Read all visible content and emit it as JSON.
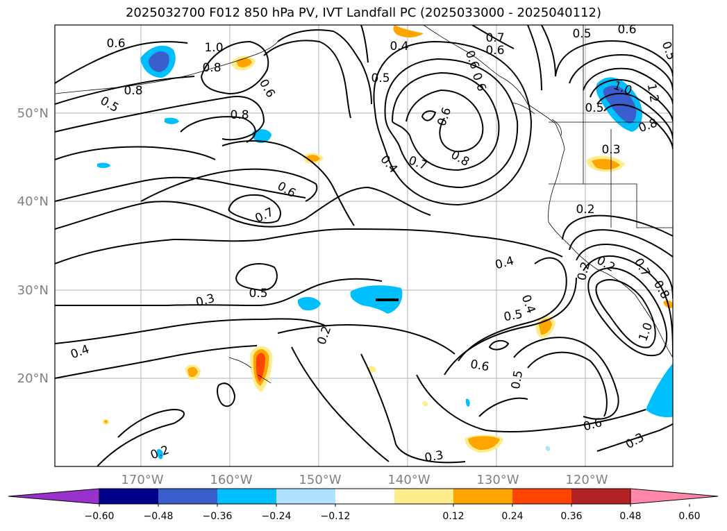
{
  "title": "2025032700 F012 850 hPa PV, IVT Landfall PC (2025033000 - 2025040112)",
  "map": {
    "lon_labels": [
      "170°W",
      "160°W",
      "150°W",
      "140°W",
      "130°W",
      "120°W"
    ],
    "lat_labels": [
      "50°N",
      "40°N",
      "30°N",
      "20°N"
    ],
    "contour_labels": [
      "0.6",
      "1.0",
      "0.8",
      "0.4",
      "0.7",
      "0.6",
      "0.5",
      "0.6",
      "0.6",
      "0.8",
      "0.5",
      "0.6",
      "0.5",
      "0.8",
      "0.6",
      "0.5",
      "0.6",
      "0.4",
      "0.7",
      "0.8",
      "1.0",
      "0.5",
      "1.2",
      "0.8",
      "0.3",
      "0.6",
      "0.7",
      "0.2",
      "0.4",
      "0.5",
      "0.3",
      "0.5",
      "0.4",
      "0.2",
      "0.6",
      "0.4",
      "0.5",
      "0.6",
      "0.3",
      "0.2",
      "0.3",
      "0.2",
      "0.2",
      "0.7",
      "1.0",
      "0.8",
      "0.5",
      "0.2",
      "0.6",
      "1.0",
      "0.9"
    ]
  },
  "colorbar": {
    "colors": [
      "#9932CC",
      "#00008B",
      "#3A5FCD",
      "#00BFFF",
      "#B0E2FF",
      "#FFFFFF",
      "#FFEC8B",
      "#FFA500",
      "#FF4500",
      "#B22222",
      "#FF88AA"
    ],
    "tick_labels": [
      "−0.60",
      "−0.48",
      "−0.36",
      "−0.24",
      "−0.12",
      "0.12",
      "0.24",
      "0.36",
      "0.48",
      "0.60"
    ]
  }
}
